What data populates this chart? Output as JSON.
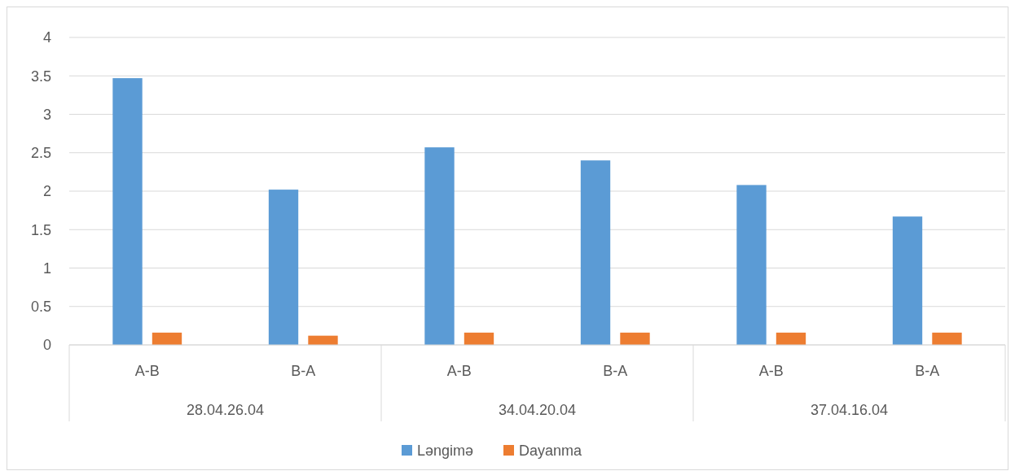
{
  "chart_data": {
    "type": "bar",
    "categories": [
      "A-B",
      "B-A",
      "A-B",
      "B-A",
      "A-B",
      "B-A"
    ],
    "series": [
      {
        "name": "Ləngimə",
        "color": "#5b9bd5",
        "values": [
          3.47,
          2.02,
          2.57,
          2.4,
          2.08,
          1.67
        ]
      },
      {
        "name": "Dayanma",
        "color": "#ed7d31",
        "values": [
          0.16,
          0.12,
          0.16,
          0.16,
          0.16,
          0.16
        ]
      }
    ],
    "annotations": [
      "28.04.26.04",
      "34.04.20.04",
      "37.04.16.04"
    ],
    "ylim": [
      0,
      4
    ],
    "yticks": [
      0,
      0.5,
      1,
      1.5,
      2,
      2.5,
      3,
      3.5,
      4
    ],
    "grid": "y",
    "legend": "bottom"
  }
}
